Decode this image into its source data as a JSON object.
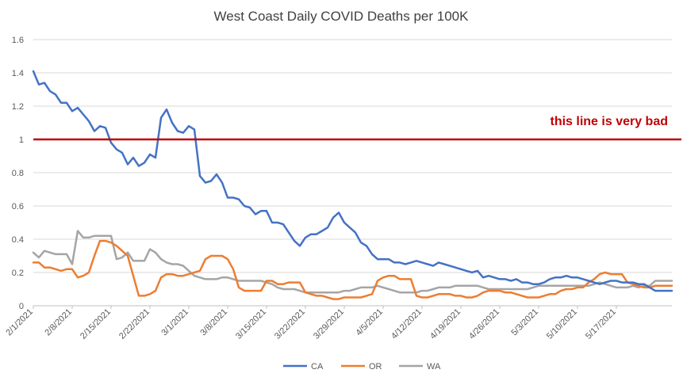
{
  "chart_data": {
    "type": "line",
    "title": "West Coast Daily COVID Deaths per 100K",
    "xlabel": "",
    "ylabel": "",
    "ylim": [
      0,
      1.6
    ],
    "yticks": [
      "0",
      "0.2",
      "0.4",
      "0.6",
      "0.8",
      "1",
      "1.2",
      "1.4",
      "1.6"
    ],
    "x_start": "2021-02-01",
    "xtick_labels": [
      "2/1/2021",
      "2/8/2021",
      "2/15/2021",
      "2/22/2021",
      "3/1/2021",
      "3/8/2021",
      "3/15/2021",
      "3/22/2021",
      "3/29/2021",
      "4/5/2021",
      "4/12/2021",
      "4/19/2021",
      "4/26/2021",
      "5/3/2021",
      "5/10/2021",
      "5/17/2021"
    ],
    "grid": "horizontal",
    "legend": "bottom",
    "reference_line": {
      "y": 1,
      "label": "this line is very bad",
      "color": "#c00000"
    },
    "series": [
      {
        "name": "CA",
        "color": "#4472c4",
        "values": [
          1.41,
          1.33,
          1.34,
          1.29,
          1.27,
          1.22,
          1.22,
          1.17,
          1.19,
          1.15,
          1.11,
          1.05,
          1.08,
          1.07,
          0.98,
          0.94,
          0.92,
          0.85,
          0.89,
          0.84,
          0.86,
          0.91,
          0.89,
          1.13,
          1.18,
          1.1,
          1.05,
          1.04,
          1.08,
          1.06,
          0.78,
          0.74,
          0.75,
          0.79,
          0.74,
          0.65,
          0.65,
          0.64,
          0.6,
          0.59,
          0.55,
          0.57,
          0.57,
          0.5,
          0.5,
          0.49,
          0.44,
          0.39,
          0.36,
          0.41,
          0.43,
          0.43,
          0.45,
          0.47,
          0.53,
          0.56,
          0.5,
          0.47,
          0.44,
          0.38,
          0.36,
          0.31,
          0.28,
          0.28,
          0.28,
          0.26,
          0.26,
          0.25,
          0.26,
          0.27,
          0.26,
          0.25,
          0.24,
          0.26,
          0.25,
          0.24,
          0.23,
          0.22,
          0.21,
          0.2,
          0.21,
          0.17,
          0.18,
          0.17,
          0.16,
          0.16,
          0.15,
          0.16,
          0.14,
          0.14,
          0.13,
          0.13,
          0.14,
          0.16,
          0.17,
          0.17,
          0.18,
          0.17,
          0.17,
          0.16,
          0.15,
          0.14,
          0.13,
          0.14,
          0.15,
          0.15,
          0.14,
          0.14,
          0.14,
          0.13,
          0.13,
          0.11,
          0.09,
          0.09,
          0.09,
          0.09
        ]
      },
      {
        "name": "OR",
        "color": "#ed7d31",
        "values": [
          0.26,
          0.26,
          0.23,
          0.23,
          0.22,
          0.21,
          0.22,
          0.22,
          0.17,
          0.18,
          0.2,
          0.3,
          0.39,
          0.39,
          0.38,
          0.36,
          0.33,
          0.3,
          0.18,
          0.06,
          0.06,
          0.07,
          0.09,
          0.17,
          0.19,
          0.19,
          0.18,
          0.18,
          0.19,
          0.2,
          0.21,
          0.28,
          0.3,
          0.3,
          0.3,
          0.28,
          0.22,
          0.11,
          0.09,
          0.09,
          0.09,
          0.09,
          0.15,
          0.15,
          0.13,
          0.13,
          0.14,
          0.14,
          0.14,
          0.08,
          0.07,
          0.06,
          0.06,
          0.05,
          0.04,
          0.04,
          0.05,
          0.05,
          0.05,
          0.05,
          0.06,
          0.07,
          0.15,
          0.17,
          0.18,
          0.18,
          0.16,
          0.16,
          0.16,
          0.06,
          0.05,
          0.05,
          0.06,
          0.07,
          0.07,
          0.07,
          0.06,
          0.06,
          0.05,
          0.05,
          0.06,
          0.08,
          0.09,
          0.09,
          0.09,
          0.08,
          0.08,
          0.07,
          0.06,
          0.05,
          0.05,
          0.05,
          0.06,
          0.07,
          0.07,
          0.09,
          0.1,
          0.1,
          0.11,
          0.11,
          0.14,
          0.16,
          0.19,
          0.2,
          0.19,
          0.19,
          0.19,
          0.14,
          0.13,
          0.12,
          0.11,
          0.11,
          0.12,
          0.12,
          0.12,
          0.12
        ]
      },
      {
        "name": "WA",
        "color": "#a5a5a5",
        "values": [
          0.32,
          0.29,
          0.33,
          0.32,
          0.31,
          0.31,
          0.31,
          0.25,
          0.45,
          0.41,
          0.41,
          0.42,
          0.42,
          0.42,
          0.42,
          0.28,
          0.29,
          0.32,
          0.27,
          0.27,
          0.27,
          0.34,
          0.32,
          0.28,
          0.26,
          0.25,
          0.25,
          0.24,
          0.21,
          0.18,
          0.17,
          0.16,
          0.16,
          0.16,
          0.17,
          0.17,
          0.16,
          0.15,
          0.15,
          0.15,
          0.15,
          0.15,
          0.14,
          0.13,
          0.11,
          0.1,
          0.1,
          0.1,
          0.09,
          0.08,
          0.08,
          0.08,
          0.08,
          0.08,
          0.08,
          0.08,
          0.09,
          0.09,
          0.1,
          0.11,
          0.11,
          0.11,
          0.12,
          0.11,
          0.1,
          0.09,
          0.08,
          0.08,
          0.08,
          0.08,
          0.09,
          0.09,
          0.1,
          0.11,
          0.11,
          0.11,
          0.12,
          0.12,
          0.12,
          0.12,
          0.12,
          0.11,
          0.1,
          0.1,
          0.1,
          0.1,
          0.1,
          0.1,
          0.1,
          0.1,
          0.11,
          0.12,
          0.12,
          0.12,
          0.12,
          0.12,
          0.12,
          0.12,
          0.12,
          0.12,
          0.12,
          0.13,
          0.14,
          0.13,
          0.12,
          0.11,
          0.11,
          0.11,
          0.12,
          0.11,
          0.12,
          0.12,
          0.15,
          0.15,
          0.15,
          0.15
        ]
      }
    ]
  }
}
